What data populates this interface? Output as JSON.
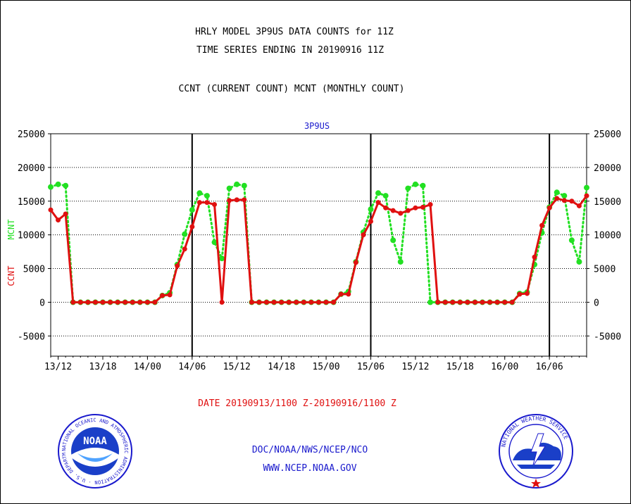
{
  "header": {
    "title_line1": "HRLY MODEL 3P9US DATA COUNTS for 11Z",
    "title_line2": "TIME SERIES ENDING IN 20190916 11Z",
    "title_line3": "CCNT (CURRENT COUNT) MCNT (MONTHLY COUNT)"
  },
  "footer": {
    "date_range": "DATE 20190913/1100 Z-20190916/1100 Z",
    "agency": "DOC/NOAA/NWS/NCEP/NCO",
    "website": "WWW.NCEP.NOAA.GOV"
  },
  "logos": {
    "noaa_text": "NOAA",
    "noaa_ring": "NATIONAL OCEANIC AND ATMOSPHERIC ADMINISTRATION · U.S. DEPARTMENT OF COMMERCE",
    "nws_ring": "NATIONAL WEATHER SERVICE"
  },
  "colors": {
    "ccnt": "#e01010",
    "mcnt": "#22e022",
    "title": "#000000",
    "blue_text": "#1a1acd",
    "red_text": "#e01010"
  },
  "chart_data": {
    "type": "line",
    "title": "3P9US",
    "ylabel_left_ccnt": "CCNT",
    "ylabel_left_mcnt": "MCNT",
    "ylim": [
      -8000,
      25000
    ],
    "yticks": [
      -5000,
      0,
      5000,
      10000,
      15000,
      20000,
      25000
    ],
    "xlim": [
      0,
      72
    ],
    "x_ticks": [
      {
        "x": 1,
        "label": "13/12"
      },
      {
        "x": 7,
        "label": "13/18"
      },
      {
        "x": 13,
        "label": "14/00"
      },
      {
        "x": 19,
        "label": "14/06"
      },
      {
        "x": 25,
        "label": "15/12"
      },
      {
        "x": 31,
        "label": "14/18"
      },
      {
        "x": 37,
        "label": "15/00"
      },
      {
        "x": 43,
        "label": "15/06"
      },
      {
        "x": 49,
        "label": "15/12"
      },
      {
        "x": 55,
        "label": "15/18"
      },
      {
        "x": 61,
        "label": "16/00"
      },
      {
        "x": 67,
        "label": "16/06"
      }
    ],
    "day_boundaries": [
      19,
      43,
      67
    ],
    "grid": "horizontal dotted",
    "series": [
      {
        "name": "CCNT",
        "color": "#e01010",
        "style": "solid",
        "values": [
          13700,
          12200,
          13100,
          0,
          0,
          0,
          0,
          0,
          0,
          0,
          0,
          0,
          0,
          0,
          0,
          1000,
          1100,
          5400,
          7900,
          11200,
          14800,
          14800,
          14500,
          0,
          15100,
          15200,
          15200,
          0,
          0,
          0,
          0,
          0,
          0,
          0,
          0,
          0,
          0,
          0,
          0,
          1200,
          1200,
          5900,
          10000,
          12000,
          14800,
          14000,
          13600,
          13200,
          13600,
          14000,
          14100,
          14500,
          0,
          0,
          0,
          0,
          0,
          0,
          0,
          0,
          0,
          0,
          0,
          1200,
          1300,
          6700,
          11400,
          14000,
          15400,
          15100,
          15000,
          14300,
          15800
        ]
      },
      {
        "name": "MCNT",
        "color": "#22e022",
        "style": "dotted",
        "values": [
          17100,
          17500,
          17300,
          0,
          0,
          0,
          0,
          0,
          0,
          0,
          0,
          0,
          0,
          0,
          0,
          1000,
          1400,
          5600,
          10100,
          13700,
          16200,
          15800,
          8900,
          6500,
          16900,
          17500,
          17300,
          0,
          0,
          0,
          0,
          0,
          0,
          0,
          0,
          0,
          0,
          0,
          0,
          1200,
          1600,
          6000,
          10400,
          13800,
          16200,
          15800,
          9200,
          6000,
          16900,
          17500,
          17300,
          0,
          0,
          0,
          0,
          0,
          0,
          0,
          0,
          0,
          0,
          0,
          0,
          1300,
          1500,
          5600,
          10300,
          14100,
          16300,
          15800,
          9200,
          6000,
          17000
        ]
      }
    ]
  }
}
